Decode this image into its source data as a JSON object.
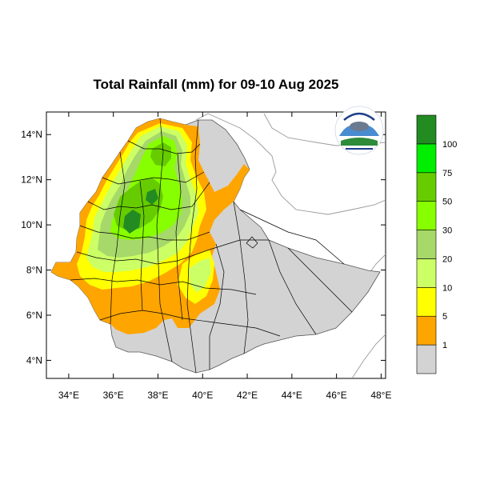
{
  "title": "Total Rainfall (mm) for 09-10 Aug 2025",
  "map": {
    "lon_range": [
      33,
      48.2
    ],
    "lat_range": [
      3.2,
      15
    ],
    "x_ticks": [
      "34°E",
      "36°E",
      "38°E",
      "40°E",
      "42°E",
      "44°E",
      "46°E",
      "48°E"
    ],
    "x_tick_values": [
      34,
      36,
      38,
      40,
      42,
      44,
      46,
      48
    ],
    "y_ticks": [
      "14°N",
      "12°N",
      "10°N",
      "8°N",
      "6°N",
      "4°N"
    ],
    "y_tick_values": [
      14,
      12,
      10,
      8,
      6,
      4
    ],
    "no_rain_color": "#d3d3d3",
    "border_color": "#000000",
    "neighbor_line_color": "#9a9a9a"
  },
  "legend": {
    "bins": [
      {
        "color": "#d3d3d3",
        "label": ""
      },
      {
        "color": "#ffa500",
        "label": "1"
      },
      {
        "color": "#ffff00",
        "label": "5"
      },
      {
        "color": "#ccff66",
        "label": "10"
      },
      {
        "color": "#a6d86a",
        "label": "20"
      },
      {
        "color": "#88ff00",
        "label": "30"
      },
      {
        "color": "#66cc00",
        "label": "50"
      },
      {
        "color": "#00ee00",
        "label": "75"
      },
      {
        "color": "#228b22",
        "label": "100"
      }
    ]
  },
  "logo": {
    "name": "meteorology-agency-logo"
  }
}
